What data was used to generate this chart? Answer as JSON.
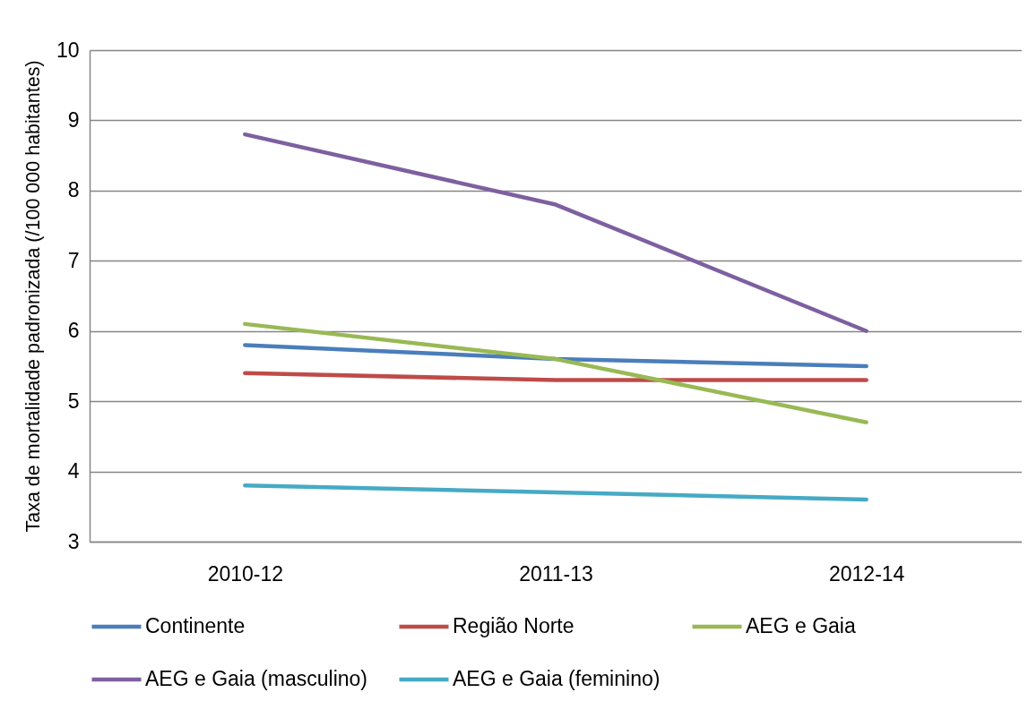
{
  "chart_data": {
    "type": "line",
    "ylabel": "Taxa de mortalidade padronizada (/100 000 habitantes)",
    "categories": [
      "2010-12",
      "2011-13",
      "2012-14"
    ],
    "series": [
      {
        "name": "Continente",
        "color": "#4a7ebb",
        "values": [
          5.8,
          5.6,
          5.5
        ]
      },
      {
        "name": "Região Norte",
        "color": "#be4b48",
        "values": [
          5.4,
          5.3,
          5.3
        ]
      },
      {
        "name": "AEG e Gaia",
        "color": "#98b954",
        "values": [
          6.1,
          5.6,
          4.7
        ]
      },
      {
        "name": "AEG e Gaia (masculino)",
        "color": "#7d60a0",
        "values": [
          8.8,
          7.8,
          6.0
        ]
      },
      {
        "name": "AEG e Gaia (feminino)",
        "color": "#46aac5",
        "values": [
          3.8,
          3.7,
          3.6
        ]
      }
    ],
    "ylim": [
      3,
      10
    ],
    "yticks": [
      3,
      4,
      5,
      6,
      7,
      8,
      9,
      10
    ],
    "grid": "y",
    "legend": "bottom",
    "line_style": "solid"
  }
}
